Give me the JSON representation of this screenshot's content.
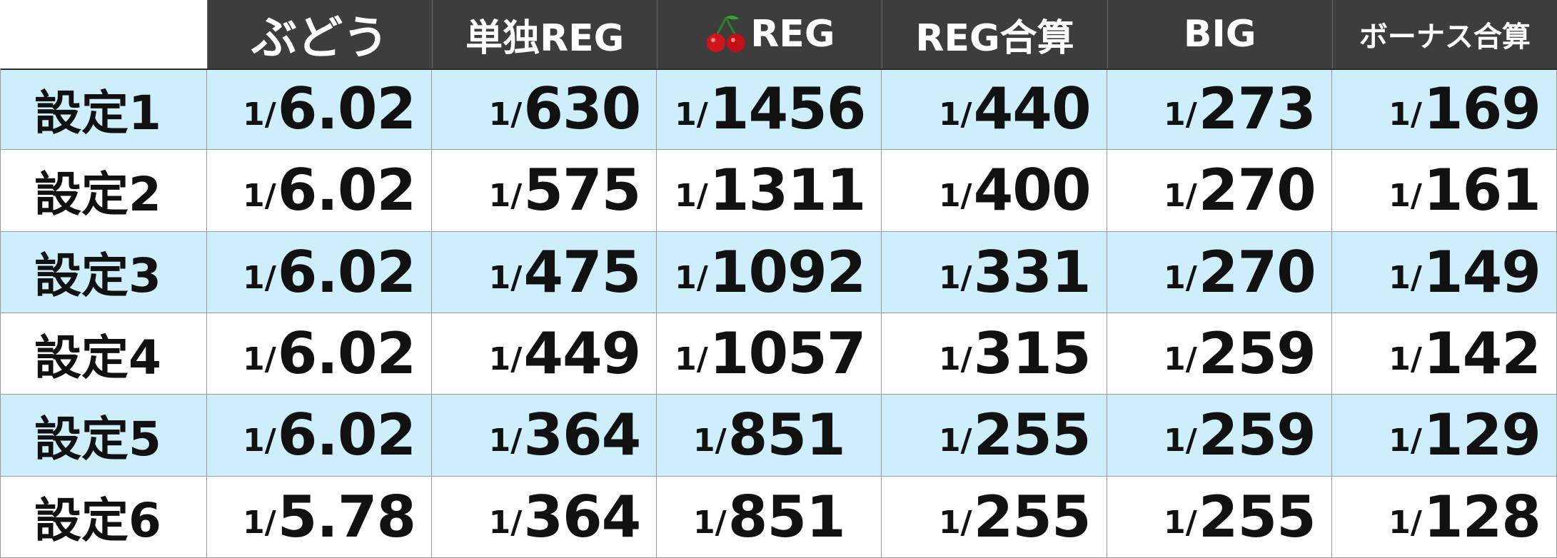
{
  "table": {
    "headers": [
      "ぶどう",
      "単独REG",
      "REG",
      "REG合算",
      "BIG",
      "ボーナス合算"
    ],
    "cherry_header_icon": "cherry-icon",
    "prefix": "1/",
    "rows": [
      {
        "label": "設定1",
        "values": [
          "6.02",
          "630",
          "1456",
          "440",
          "273",
          "169"
        ]
      },
      {
        "label": "設定2",
        "values": [
          "6.02",
          "575",
          "1311",
          "400",
          "270",
          "161"
        ]
      },
      {
        "label": "設定3",
        "values": [
          "6.02",
          "475",
          "1092",
          "331",
          "270",
          "149"
        ]
      },
      {
        "label": "設定4",
        "values": [
          "6.02",
          "449",
          "1057",
          "315",
          "259",
          "142"
        ]
      },
      {
        "label": "設定5",
        "values": [
          "6.02",
          "364",
          "851",
          "255",
          "259",
          "129"
        ]
      },
      {
        "label": "設定6",
        "values": [
          "5.78",
          "364",
          "851",
          "255",
          "255",
          "128"
        ]
      }
    ]
  },
  "colors": {
    "header_bg": "#3d3d3d",
    "row_blue": "#cdeefa",
    "row_white": "#ffffff",
    "text": "#111111"
  }
}
